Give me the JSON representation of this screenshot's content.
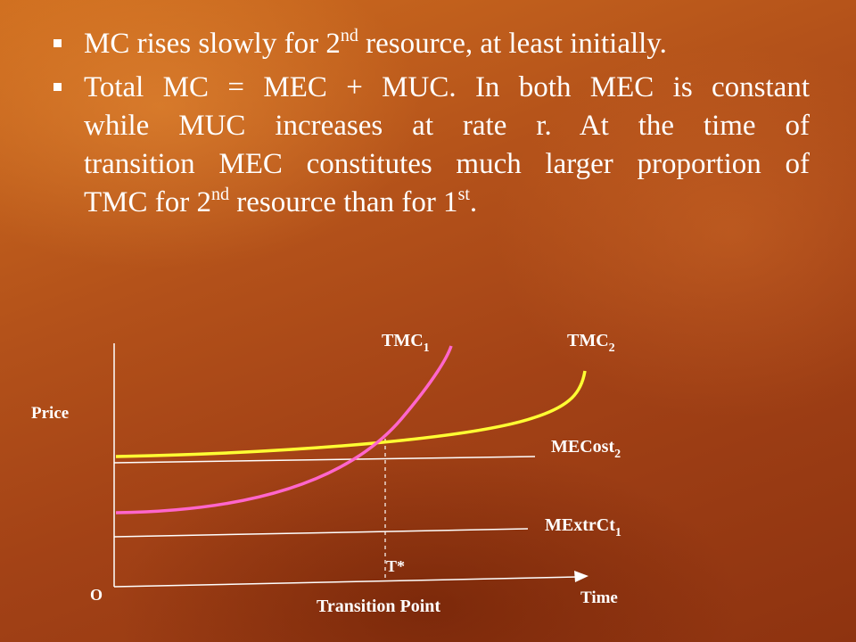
{
  "bullets": [
    {
      "lines": [
        [
          {
            "t": "MC rises slowly for 2"
          },
          {
            "sup": "nd"
          },
          {
            "t": " resource, at least initially."
          }
        ]
      ]
    },
    {
      "lines": [
        [
          {
            "t": "Total MC = MEC + MUC. In both MEC is constant"
          }
        ],
        [
          {
            "t": "while MUC increases at rate r. At the time of"
          }
        ],
        [
          {
            "t": "transition MEC constitutes much larger proportion of"
          }
        ],
        [
          {
            "t": "TMC for 2"
          },
          {
            "sup": "nd"
          },
          {
            "t": " resource than for 1"
          },
          {
            "sup": "st"
          },
          {
            "t": "."
          }
        ]
      ]
    }
  ],
  "diagram": {
    "axis_y_label": "Price",
    "axis_x_label": "Time",
    "origin_label": "O",
    "transition_marker": "T*",
    "transition_caption": "Transition Point",
    "curves": {
      "tmc1": {
        "base": "TMC",
        "sub": "1",
        "color": "#ff66cc"
      },
      "tmc2": {
        "base": "TMC",
        "sub": "2",
        "color": "#ffff33"
      },
      "mecost2": {
        "base": "MECost",
        "sub": "2",
        "color": "#ffffff"
      },
      "mextrct1": {
        "base": "MExtrCt",
        "sub": "1",
        "color": "#ffffff"
      }
    },
    "axis_color": "#ffffff"
  }
}
